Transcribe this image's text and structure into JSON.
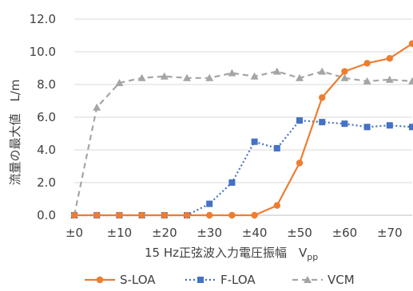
{
  "chart_data": {
    "type": "line",
    "xlabel": "15 Hz正弦波入力電圧振幅　V",
    "xlabel_sub": "pp",
    "ylabel": "流量の最大値　L/m",
    "x": [
      0,
      5,
      10,
      15,
      20,
      25,
      30,
      35,
      40,
      45,
      50,
      55,
      60,
      65,
      70,
      75
    ],
    "x_tick_values": [
      0,
      10,
      20,
      30,
      40,
      50,
      60,
      70
    ],
    "x_tick_labels": [
      "±0",
      "±10",
      "±20",
      "±30",
      "±40",
      "±50",
      "±60",
      "±70"
    ],
    "y_tick_values": [
      0,
      2,
      4,
      6,
      8,
      10,
      12
    ],
    "y_tick_labels": [
      "0.0",
      "2.0",
      "4.0",
      "6.0",
      "8.0",
      "10.0",
      "12.0"
    ],
    "xlim": [
      0,
      75
    ],
    "ylim": [
      0,
      12
    ],
    "grid": "horizontal",
    "legend_position": "bottom",
    "series": [
      {
        "name": "S-LOA",
        "color": "#ED7D31",
        "line_style": "solid",
        "marker": "circle",
        "values": [
          0,
          0,
          0,
          0,
          0,
          0,
          0,
          0,
          0,
          0.6,
          3.2,
          7.2,
          8.8,
          9.3,
          9.6,
          10.5
        ]
      },
      {
        "name": "F-LOA",
        "color": "#4472C4",
        "line_style": "dotted",
        "marker": "square",
        "values": [
          0,
          0,
          0,
          0,
          0,
          0,
          0.7,
          2.0,
          4.5,
          4.1,
          5.8,
          5.7,
          5.6,
          5.4,
          5.5,
          5.4
        ]
      },
      {
        "name": "VCM",
        "color": "#A5A5A5",
        "line_style": "dashed",
        "marker": "triangle",
        "values": [
          0,
          6.6,
          8.1,
          8.4,
          8.5,
          8.4,
          8.4,
          8.7,
          8.5,
          8.8,
          8.4,
          8.8,
          8.4,
          8.2,
          8.3,
          8.2
        ]
      }
    ]
  }
}
